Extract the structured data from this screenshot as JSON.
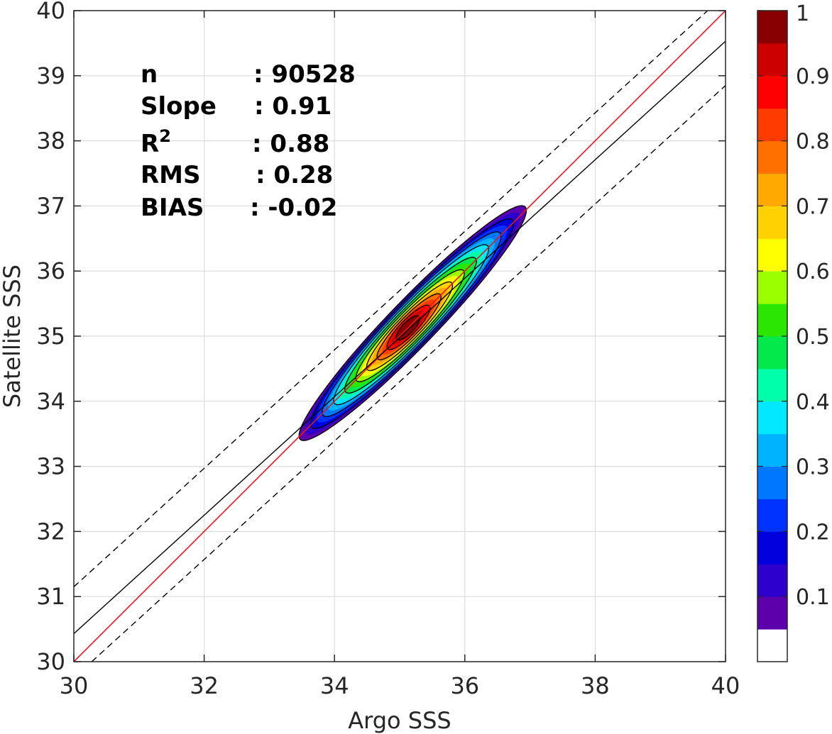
{
  "chart_data": {
    "type": "heatmap",
    "subtype": "filled-contour density scatter",
    "xlabel": "Argo SSS",
    "ylabel": "Satellite SSS",
    "xlim": [
      30,
      40
    ],
    "ylim": [
      30,
      40
    ],
    "xticks": [
      "30",
      "32",
      "34",
      "36",
      "38",
      "40"
    ],
    "yticks": [
      "30",
      "31",
      "32",
      "33",
      "34",
      "35",
      "36",
      "37",
      "38",
      "39",
      "40"
    ],
    "grid": true,
    "stats": [
      {
        "label": "n",
        "value": ": 90528"
      },
      {
        "label": "Slope",
        "value": ": 0.91"
      },
      {
        "label": "R",
        "sup": "2",
        "value": ": 0.88"
      },
      {
        "label": "RMS",
        "value": ": 0.28"
      },
      {
        "label": "BIAS",
        "value": ": -0.02"
      }
    ],
    "lines": {
      "one_to_one": {
        "slope": 1,
        "intercept": 0,
        "color": "#e8151b"
      },
      "fit": {
        "slope": 0.91,
        "intercept_at_x30": 30.43,
        "color": "#000000"
      },
      "fit_upper_dashed": {
        "y_at_x30": 31.15,
        "color": "#000000"
      },
      "fit_lower_dashed": {
        "y_at_x40": 38.85,
        "color": "#000000"
      }
    },
    "density": {
      "center": [
        35.2,
        35.2
      ],
      "peak": 1.0,
      "contour_levels": [
        0.05,
        0.15,
        0.25,
        0.35,
        0.45,
        0.55,
        0.65,
        0.75,
        0.85,
        0.95
      ]
    },
    "colorbar": {
      "ticks": [
        "0.1",
        "0.2",
        "0.3",
        "0.4",
        "0.5",
        "0.6",
        "0.7",
        "0.8",
        "0.9",
        "1"
      ],
      "tick_values": [
        0.1,
        0.2,
        0.3,
        0.4,
        0.5,
        0.6,
        0.7,
        0.8,
        0.9,
        1.0
      ],
      "colors": [
        "#ffffff",
        "#5b00aa",
        "#2e00cd",
        "#0000dd",
        "#0033ff",
        "#0077ff",
        "#00b3ff",
        "#00e8ff",
        "#00ffaa",
        "#00e84a",
        "#2ae600",
        "#9bff00",
        "#ffff00",
        "#ffd200",
        "#ffa800",
        "#ff7000",
        "#ff3c00",
        "#ff0000",
        "#cc0000",
        "#880000"
      ]
    }
  }
}
